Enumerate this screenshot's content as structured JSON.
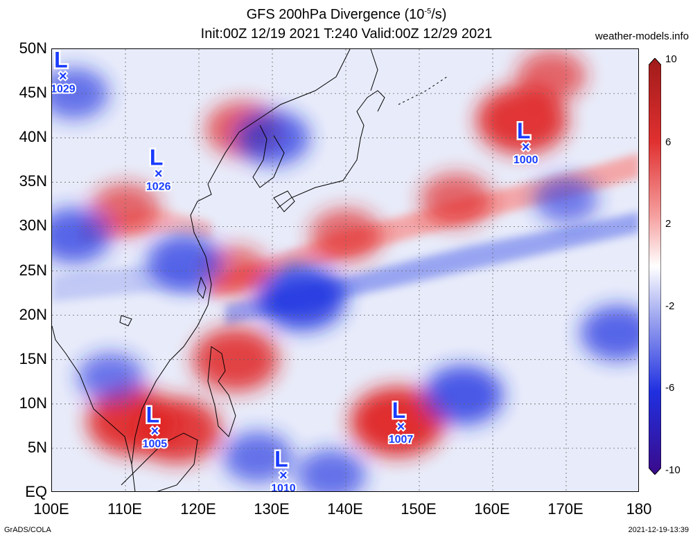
{
  "title": {
    "line1_prefix": "GFS 200hPa Divergence (10",
    "line1_exp": "-5",
    "line1_suffix": "/s)",
    "line2": "Init:00Z 12/19 2021 T:240 Valid:00Z 12/29 2021"
  },
  "site": "weather-models.info",
  "lat_labels": [
    "50N",
    "45N",
    "40N",
    "35N",
    "30N",
    "25N",
    "20N",
    "15N",
    "10N",
    "5N",
    "EQ"
  ],
  "lon_labels": [
    "100E",
    "110E",
    "120E",
    "130E",
    "140E",
    "150E",
    "160E",
    "170E",
    "180"
  ],
  "colorbar": {
    "labels": [
      "10",
      "6",
      "2",
      "-2",
      "-6",
      "-10"
    ],
    "colors": [
      "#a01a1a",
      "#e03030",
      "#f6a0a0",
      "#ffffff",
      "#a0a8f0",
      "#2030e0",
      "#3a0a8a"
    ]
  },
  "lows": [
    {
      "symbol": "L",
      "pressure": "1029",
      "lat": 47,
      "lon": 101.5
    },
    {
      "symbol": "L",
      "pressure": "1026",
      "lat": 36,
      "lon": 114.5
    },
    {
      "symbol": "L",
      "pressure": "1000",
      "lat": 39,
      "lon": 164.5
    },
    {
      "symbol": "L",
      "pressure": "1005",
      "lat": 7,
      "lon": 114
    },
    {
      "symbol": "L",
      "pressure": "1007",
      "lat": 7.5,
      "lon": 147.5
    },
    {
      "symbol": "L",
      "pressure": "1010",
      "lat": 2,
      "lon": 131.5
    }
  ],
  "field_features": [
    {
      "type": "positive",
      "lat": 8,
      "lon": 111,
      "strength": 0.9
    },
    {
      "type": "positive",
      "lat": 7,
      "lon": 117,
      "strength": 0.85
    },
    {
      "type": "positive",
      "lat": 15,
      "lon": 125,
      "strength": 0.8
    },
    {
      "type": "positive",
      "lat": 8,
      "lon": 147,
      "strength": 0.95
    },
    {
      "type": "positive",
      "lat": 42,
      "lon": 164,
      "strength": 0.9
    },
    {
      "type": "positive",
      "lat": 29,
      "lon": 140,
      "strength": 0.55
    },
    {
      "type": "positive",
      "lat": 33,
      "lon": 155,
      "strength": 0.55
    },
    {
      "type": "positive",
      "lat": 25,
      "lon": 125,
      "strength": 0.45
    },
    {
      "type": "positive",
      "lat": 32,
      "lon": 110,
      "strength": 0.5
    },
    {
      "type": "positive",
      "lat": 41,
      "lon": 126,
      "strength": 0.6
    },
    {
      "type": "positive",
      "lat": 47,
      "lon": 168,
      "strength": 0.5
    },
    {
      "type": "negative",
      "lat": 22,
      "lon": 134,
      "strength": 0.85
    },
    {
      "type": "negative",
      "lat": 26,
      "lon": 118,
      "strength": 0.6
    },
    {
      "type": "negative",
      "lat": 29,
      "lon": 103,
      "strength": 0.6
    },
    {
      "type": "negative",
      "lat": 40,
      "lon": 130,
      "strength": 0.6
    },
    {
      "type": "negative",
      "lat": 45,
      "lon": 103,
      "strength": 0.5
    },
    {
      "type": "negative",
      "lat": 11,
      "lon": 156,
      "strength": 0.7
    },
    {
      "type": "negative",
      "lat": 18,
      "lon": 177,
      "strength": 0.6
    },
    {
      "type": "negative",
      "lat": 4,
      "lon": 128,
      "strength": 0.5
    },
    {
      "type": "negative",
      "lat": 2,
      "lon": 138,
      "strength": 0.5
    },
    {
      "type": "negative",
      "lat": 13,
      "lon": 108,
      "strength": 0.45
    },
    {
      "type": "negative",
      "lat": 33,
      "lon": 170,
      "strength": 0.4
    }
  ],
  "footer": {
    "credit": "GrADS/COLA",
    "timestamp": "2021-12-19-13:39"
  }
}
